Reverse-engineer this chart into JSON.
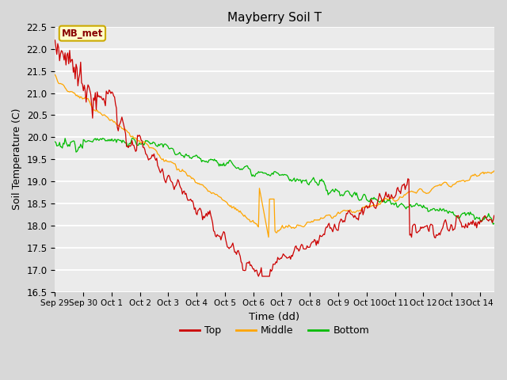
{
  "title": "Mayberry Soil T",
  "xlabel": "Time (dd)",
  "ylabel": "Soil Temperature (C)",
  "ylim": [
    16.5,
    22.5
  ],
  "yticks": [
    16.5,
    17.0,
    17.5,
    18.0,
    18.5,
    19.0,
    19.5,
    20.0,
    20.5,
    21.0,
    21.5,
    22.0,
    22.5
  ],
  "fig_bg_color": "#d8d8d8",
  "plot_bg_color": "#ebebeb",
  "grid_color": "#ffffff",
  "top_color": "#cc0000",
  "middle_color": "#ffa500",
  "bottom_color": "#00bb00",
  "annotation_text": "MB_met",
  "annotation_bg": "#ffffcc",
  "annotation_border": "#ccaa00",
  "annotation_text_color": "#880000",
  "legend_labels": [
    "Top",
    "Middle",
    "Bottom"
  ],
  "tick_labels": [
    "Sep 29",
    "Sep 30",
    "Oct 1",
    "Oct 2",
    "Oct 3",
    "Oct 4",
    "Oct 5",
    "Oct 6",
    "Oct 7",
    "Oct 8",
    "Oct 9",
    "Oct 10",
    "Oct 11",
    "Oct 12",
    "Oct 13",
    "Oct 14"
  ]
}
